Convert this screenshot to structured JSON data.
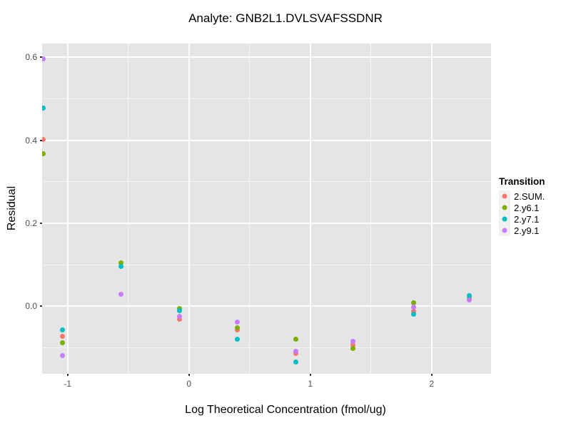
{
  "chart_data": {
    "type": "scatter",
    "title": "Analyte: GNB2L1.DVLSVAFSSDNR",
    "xlabel": "Log Theoretical Concentration (fmol/ug)",
    "ylabel": "Residual",
    "legend_title": "Transition",
    "legend_position": "right",
    "grid": true,
    "panel_bg": "#E5E5E5",
    "grid_major_color": "#FFFFFF",
    "grid_minor_color": "#F5F5F5",
    "tick_label_color": "#4D4D4D",
    "xlim": [
      -1.21,
      2.49
    ],
    "ylim": [
      -0.163,
      0.633
    ],
    "x_ticks": [
      {
        "v": -1,
        "label": "-1"
      },
      {
        "v": 0,
        "label": "0"
      },
      {
        "v": 1,
        "label": "1"
      },
      {
        "v": 2,
        "label": "2"
      }
    ],
    "y_ticks": [
      {
        "v": 0.0,
        "label": "0.0"
      },
      {
        "v": 0.2,
        "label": "0.2"
      },
      {
        "v": 0.4,
        "label": "0.4"
      },
      {
        "v": 0.6,
        "label": "0.6"
      }
    ],
    "x_minor": [
      -0.5,
      0.5,
      1.5
    ],
    "y_minor": [
      -0.1,
      0.1,
      0.3,
      0.5
    ],
    "series": [
      {
        "name": "2.SUM.",
        "color": "#F8766D",
        "points": [
          [
            -1.2,
            0.402
          ],
          [
            -1.04,
            -0.073
          ],
          [
            -0.08,
            -0.031
          ],
          [
            0.4,
            -0.057
          ],
          [
            0.88,
            -0.114
          ],
          [
            1.35,
            -0.093
          ],
          [
            1.85,
            -0.012
          ]
        ]
      },
      {
        "name": "2.y6.1",
        "color": "#7CAE00",
        "points": [
          [
            -1.2,
            0.368
          ],
          [
            -1.04,
            -0.089
          ],
          [
            -0.56,
            0.104
          ],
          [
            -0.08,
            -0.006
          ],
          [
            0.4,
            -0.052
          ],
          [
            0.88,
            -0.08
          ],
          [
            1.35,
            -0.102
          ],
          [
            1.85,
            0.008
          ],
          [
            2.31,
            0.018
          ]
        ]
      },
      {
        "name": "2.y7.1",
        "color": "#00BFC4",
        "points": [
          [
            -1.2,
            0.478
          ],
          [
            -1.04,
            -0.058
          ],
          [
            -0.56,
            0.096
          ],
          [
            -0.08,
            -0.011
          ],
          [
            0.4,
            -0.08
          ],
          [
            0.88,
            -0.135
          ],
          [
            1.85,
            -0.02
          ],
          [
            2.31,
            0.026
          ]
        ]
      },
      {
        "name": "2.y9.1",
        "color": "#C77CFF",
        "points": [
          [
            -1.2,
            0.596
          ],
          [
            -1.04,
            -0.12
          ],
          [
            -0.56,
            0.029
          ],
          [
            -0.08,
            -0.024
          ],
          [
            0.4,
            -0.038
          ],
          [
            0.88,
            -0.109
          ],
          [
            1.35,
            -0.085
          ],
          [
            1.85,
            -0.002
          ],
          [
            2.31,
            0.015
          ]
        ]
      }
    ]
  }
}
